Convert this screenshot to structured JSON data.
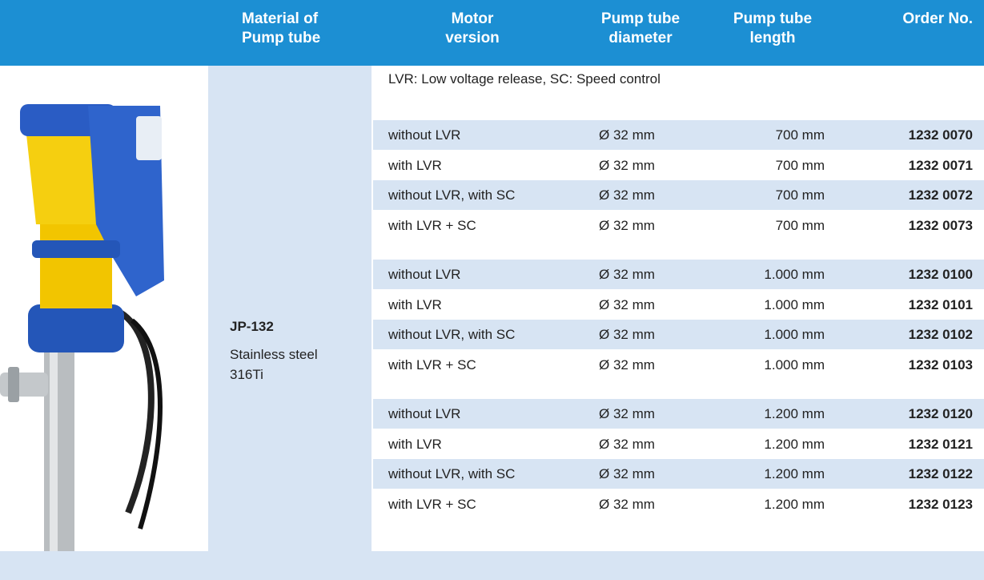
{
  "header": {
    "columns": [
      "Material of\nPump tube",
      "Motor\nversion",
      "Pump tube\ndiameter",
      "Pump tube\nlength",
      "Order No."
    ]
  },
  "note": "LVR: Low voltage release, SC: Speed control",
  "material": {
    "model": "JP-132",
    "description": "Stainless steel\n316Ti"
  },
  "rows": [
    [
      "without LVR",
      "Ø 32 mm",
      "700 mm",
      "1232 0070"
    ],
    [
      "with LVR",
      "Ø 32 mm",
      "700 mm",
      "1232 0071"
    ],
    [
      "without LVR, with SC",
      "Ø 32 mm",
      "700 mm",
      "1232 0072"
    ],
    [
      "with LVR + SC",
      "Ø 32 mm",
      "700 mm",
      "1232 0073"
    ],
    [
      "without LVR",
      "Ø 32 mm",
      "1.000 mm",
      "1232 0100"
    ],
    [
      "with LVR",
      "Ø 32 mm",
      "1.000 mm",
      "1232 0101"
    ],
    [
      "without LVR, with SC",
      "Ø 32 mm",
      "1.000 mm",
      "1232 0102"
    ],
    [
      "with LVR + SC",
      "Ø 32 mm",
      "1.000 mm",
      "1232 0103"
    ],
    [
      "without LVR",
      "Ø 32 mm",
      "1.200 mm",
      "1232 0120"
    ],
    [
      "with LVR",
      "Ø 32 mm",
      "1.200 mm",
      "1232 0121"
    ],
    [
      "without LVR, with SC",
      "Ø 32 mm",
      "1.200 mm",
      "1232 0122"
    ],
    [
      "with LVR + SC",
      "Ø 32 mm",
      "1.200 mm",
      "1232 0123"
    ]
  ]
}
